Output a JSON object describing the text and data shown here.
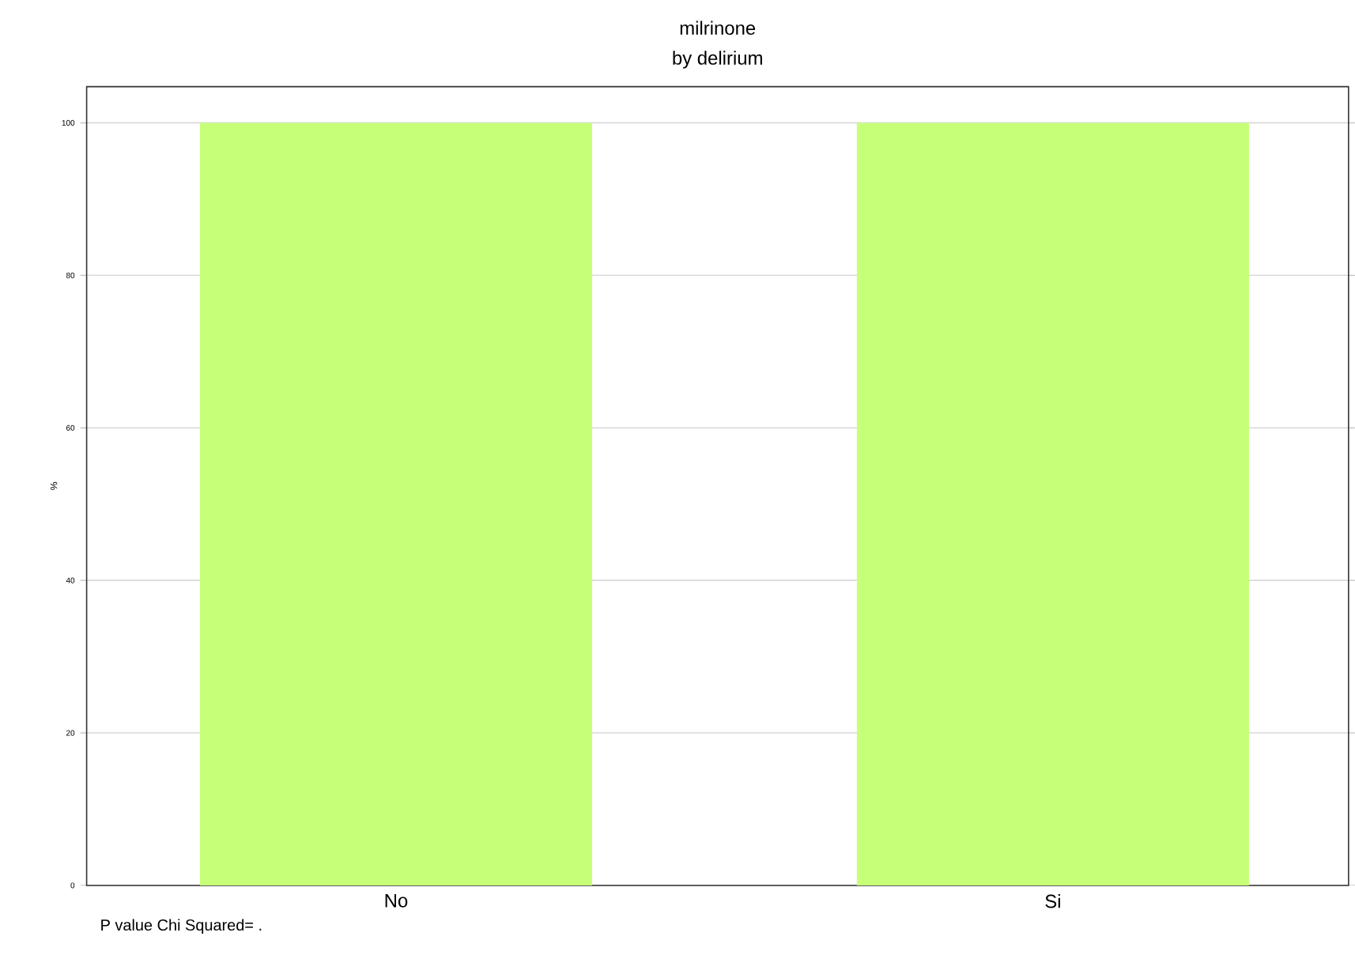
{
  "chart_data": {
    "type": "bar",
    "title": "milrinone",
    "subtitle": "by delirium",
    "ylabel": "%",
    "categories": [
      "No",
      "Si"
    ],
    "values": [
      100,
      100
    ],
    "color": "#c6ff78",
    "ylim": [
      0,
      104.75
    ],
    "yticks": [
      0,
      20,
      40,
      60,
      80,
      100
    ],
    "grid": "y",
    "annotations": [
      "P value Chi Squared=          ."
    ]
  }
}
